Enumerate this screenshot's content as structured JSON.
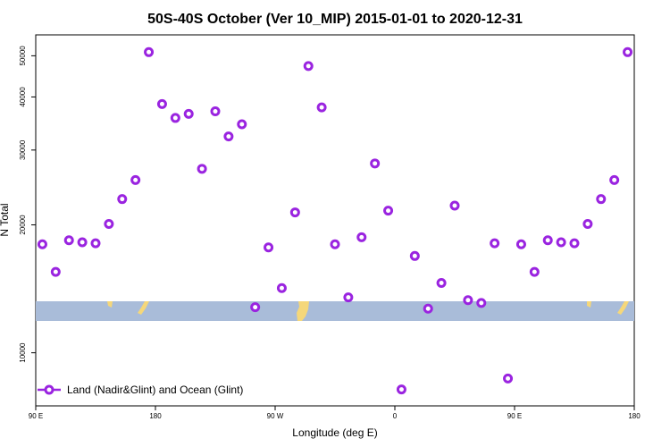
{
  "chart_data": {
    "type": "scatter",
    "title": "50S-40S October (Ver 10_MIP)   2015-01-01 to 2020-12-31",
    "xlabel": "Longitude (deg E)",
    "ylabel": "N Total",
    "x_ticks": [
      {
        "x": 90,
        "label": "90 E"
      },
      {
        "x": 180,
        "label": "180"
      },
      {
        "x": 270,
        "label": "90 W"
      },
      {
        "x": 360,
        "label": "0"
      },
      {
        "x": 450,
        "label": "90 E"
      },
      {
        "x": 540,
        "label": "180"
      }
    ],
    "y_ticks": [
      {
        "y": 10000,
        "label": "10000"
      },
      {
        "y": 20000,
        "label": "20000"
      },
      {
        "y": 30000,
        "label": "30000"
      },
      {
        "y": 40000,
        "label": "40000"
      },
      {
        "y": 50000,
        "label": "50000"
      }
    ],
    "xlim": [
      90,
      540
    ],
    "ylim": [
      7500,
      56000
    ],
    "y_scale": "log",
    "grid": false,
    "legend": {
      "position": "bottom-left",
      "entries": [
        {
          "label": "Land (Nadir&Glint) and Ocean (Glint)",
          "color": "#9a24e0"
        }
      ]
    },
    "series": [
      {
        "name": "Land (Nadir&Glint) and Ocean (Glint)",
        "color": "#9a24e0",
        "x": [
          95,
          105,
          115,
          125,
          135,
          145,
          155,
          165,
          175,
          185,
          195,
          205,
          215,
          225,
          235,
          245,
          255,
          265,
          275,
          285,
          295,
          305,
          315,
          325,
          335,
          345,
          355,
          365,
          375,
          385,
          395,
          405,
          415,
          425,
          435,
          445,
          455,
          465,
          475,
          485,
          495,
          505,
          515,
          525,
          535
        ],
        "y": [
          18000,
          15500,
          18400,
          18200,
          18100,
          20100,
          23000,
          25500,
          51000,
          38500,
          35700,
          36500,
          27100,
          37000,
          32300,
          34500,
          12800,
          17700,
          14200,
          21400,
          47300,
          37800,
          18000,
          13500,
          18700,
          27900,
          21600,
          8200,
          16900,
          12700,
          14600,
          22200,
          13300,
          13100,
          18100,
          8700,
          18000,
          15500,
          18400,
          18200,
          18100,
          20100,
          23000,
          25500,
          51000
        ]
      }
    ],
    "map_strip": {
      "band_color": "#a9bcd9",
      "land_color": "#f5d77a"
    }
  }
}
